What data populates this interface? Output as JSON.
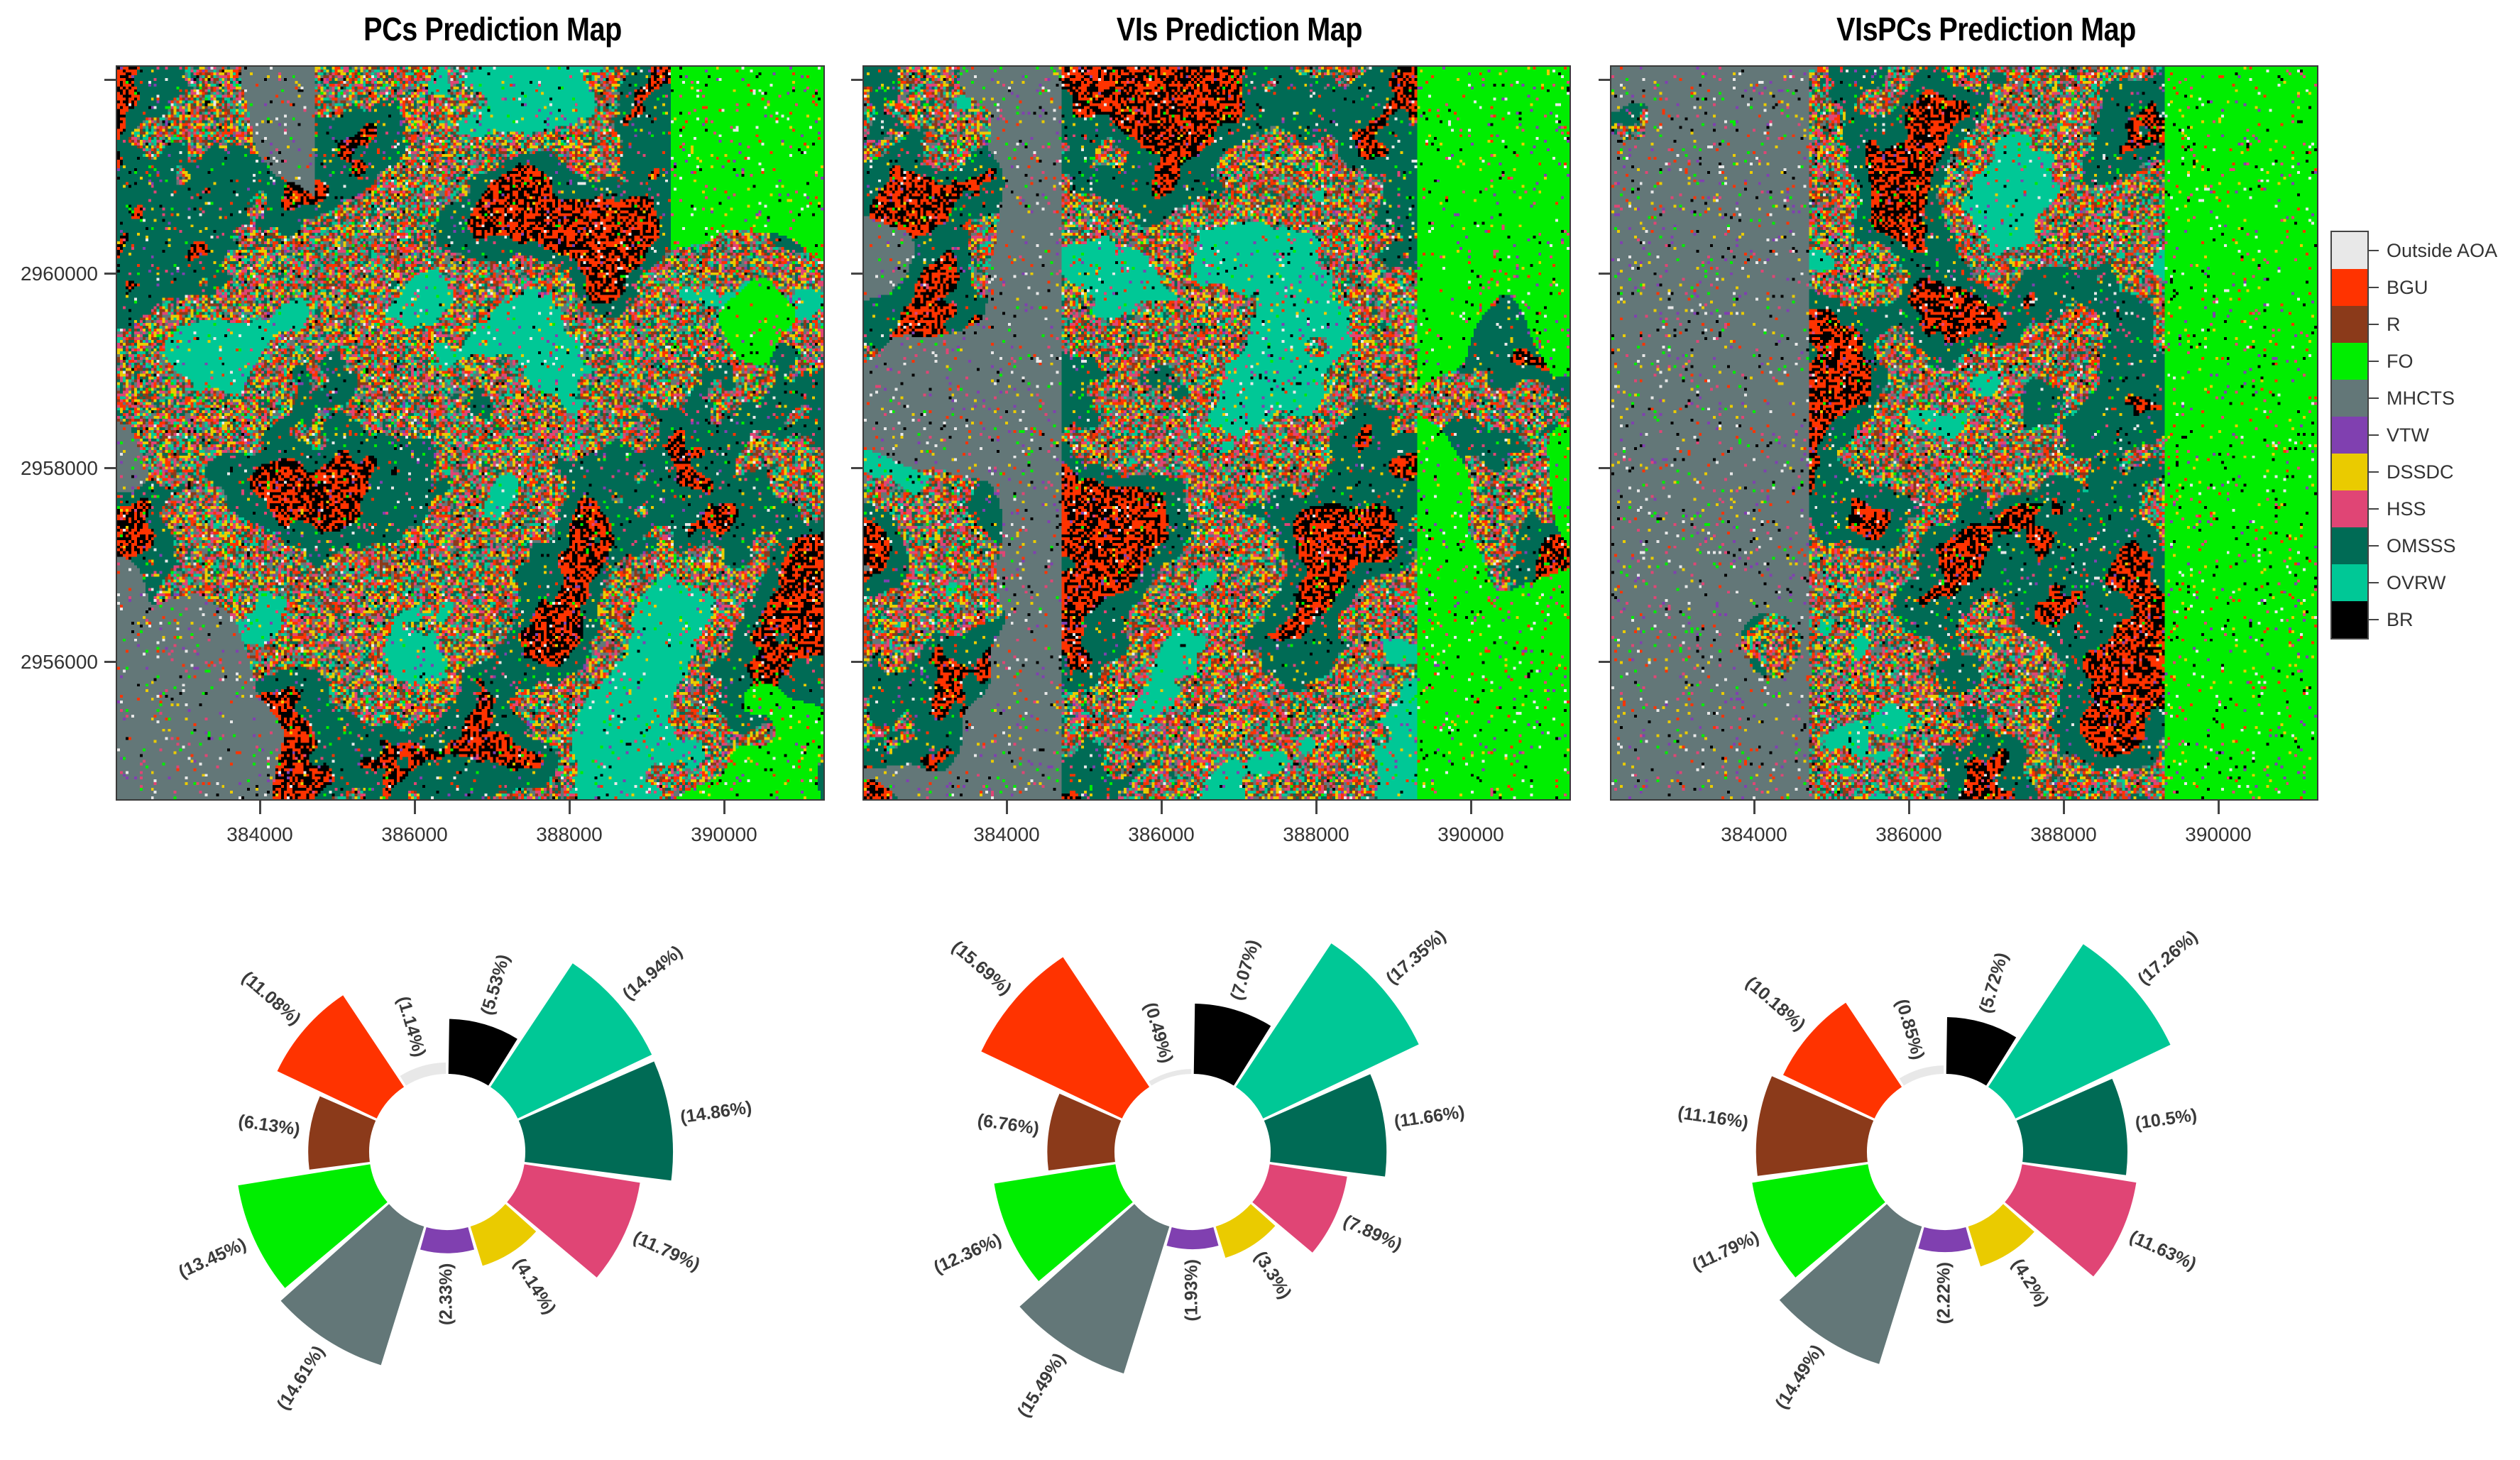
{
  "figure": {
    "titles": [
      "PCs Prediction Map",
      "VIs Prediction Map",
      "VIsPCs Prediction Map"
    ],
    "y_axis": {
      "ticks": [
        "",
        "2960000",
        "2958000",
        "2956000"
      ]
    },
    "x_axis": {
      "ticks": [
        "384000",
        "386000",
        "388000",
        "390000"
      ]
    },
    "legend": {
      "items": [
        {
          "label": "Outside AOA",
          "color": "#E8E8E8"
        },
        {
          "label": "BGU",
          "color": "#FF3300"
        },
        {
          "label": "R",
          "color": "#8B3A1A"
        },
        {
          "label": "FO",
          "color": "#00EE00"
        },
        {
          "label": "MHCTS",
          "color": "#637778"
        },
        {
          "label": "VTW",
          "color": "#8040B0"
        },
        {
          "label": "DSSDC",
          "color": "#EACB00"
        },
        {
          "label": "HSS",
          "color": "#E04575"
        },
        {
          "label": "OMSSS",
          "color": "#006B55"
        },
        {
          "label": "OVRW",
          "color": "#00C896"
        },
        {
          "label": "BR",
          "color": "#000000"
        }
      ]
    }
  },
  "chart_data": [
    {
      "type": "map",
      "title": "PCs Prediction Map",
      "xlabel": "",
      "ylabel": "",
      "xticks": [
        384000,
        386000,
        388000,
        390000
      ],
      "yticks": [
        2956000,
        2958000,
        2960000
      ],
      "legend": [
        "Outside AOA",
        "BGU",
        "R",
        "FO",
        "MHCTS",
        "VTW",
        "DSSDC",
        "HSS",
        "OMSSS",
        "OVRW",
        "BR"
      ]
    },
    {
      "type": "map",
      "title": "VIs Prediction Map",
      "xticks": [
        384000,
        386000,
        388000,
        390000
      ]
    },
    {
      "type": "map",
      "title": "VIsPCs Prediction Map",
      "xticks": [
        384000,
        386000,
        388000,
        390000
      ]
    },
    {
      "type": "bar",
      "subtype": "polar-rose",
      "model": "PCs",
      "categories": [
        "BR",
        "OVRW",
        "OMSSS",
        "HSS",
        "DSSDC",
        "VTW",
        "MHCTS",
        "FO",
        "R",
        "BGU",
        "Outside AOA"
      ],
      "values": [
        5.53,
        14.94,
        14.86,
        11.79,
        4.14,
        2.33,
        14.61,
        13.45,
        6.13,
        11.08,
        1.14
      ],
      "labels": [
        "(5.53%)",
        "(14.94%)",
        "(14.86%)",
        "(11.79%)",
        "(4.14%)",
        "(2.33%)",
        "(14.61%)",
        "(13.45%)",
        "(6.13%)",
        "(11.08%)",
        "(1.14%)"
      ]
    },
    {
      "type": "bar",
      "subtype": "polar-rose",
      "model": "VIs",
      "categories": [
        "BR",
        "OVRW",
        "OMSSS",
        "HSS",
        "DSSDC",
        "VTW",
        "MHCTS",
        "FO",
        "R",
        "BGU",
        "Outside AOA"
      ],
      "values": [
        7.07,
        17.35,
        11.66,
        7.89,
        3.3,
        1.93,
        15.49,
        12.36,
        6.76,
        15.69,
        0.49
      ],
      "labels": [
        "(7.07%)",
        "(17.35%)",
        "(11.66%)",
        "(7.89%)",
        "(3.3%)",
        "(1.93%)",
        "(15.49%)",
        "(12.36%)",
        "(6.76%)",
        "(15.69%)",
        "(0.49%)"
      ]
    },
    {
      "type": "bar",
      "subtype": "polar-rose",
      "model": "VIsPCs",
      "categories": [
        "BR",
        "OVRW",
        "OMSSS",
        "HSS",
        "DSSDC",
        "VTW",
        "MHCTS",
        "FO",
        "R",
        "BGU",
        "Outside AOA"
      ],
      "values": [
        5.72,
        17.26,
        10.5,
        11.63,
        4.2,
        2.22,
        14.49,
        11.79,
        11.16,
        10.18,
        0.85
      ],
      "labels": [
        "(5.72%)",
        "(17.26%)",
        "(10.5%)",
        "(11.63%)",
        "(4.2%)",
        "(2.22%)",
        "(14.49%)",
        "(11.79%)",
        "(11.16%)",
        "(10.18%)",
        "(0.85%)"
      ]
    }
  ]
}
